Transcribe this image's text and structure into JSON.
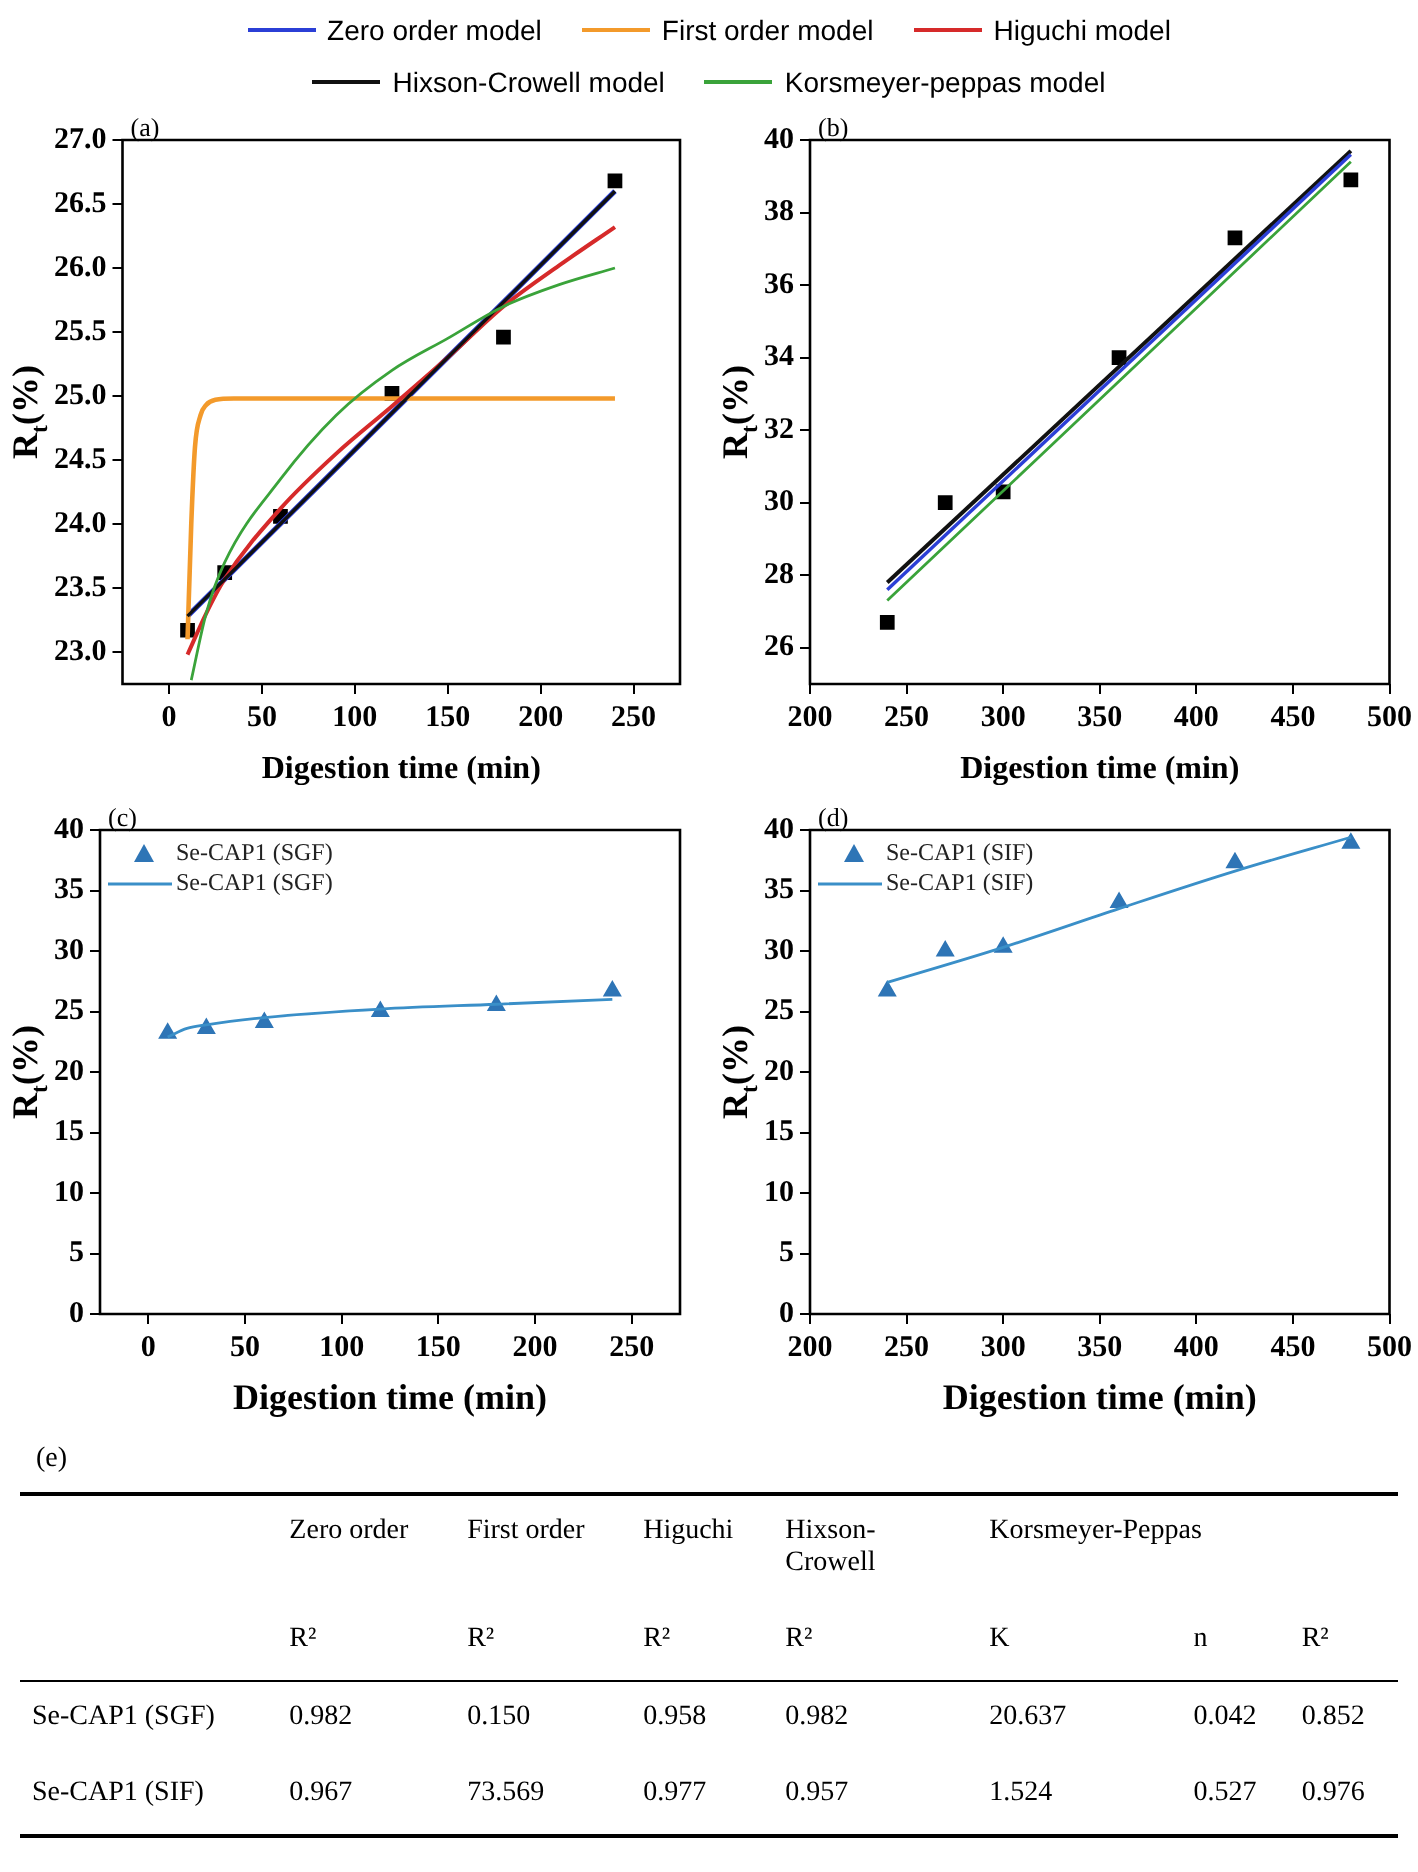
{
  "chart_data": [
    {
      "type": "line",
      "annotations": [
        "(a)"
      ],
      "xlabel": "Digestion time (min)",
      "ylabel": "R$_{t}$(%)",
      "legend": "top",
      "xlim": [
        -25,
        275
      ],
      "xticks": [
        0,
        50,
        100,
        150,
        200,
        250
      ],
      "ylim": [
        22.75,
        27.0
      ],
      "yticks": [
        {
          "value": 23,
          "label": "23.0"
        },
        23.5,
        {
          "value": 24,
          "label": "24.0"
        },
        24.5,
        {
          "value": 25,
          "label": "25.0"
        },
        25.5,
        {
          "value": 26,
          "label": "26.0"
        },
        26.5,
        {
          "value": 27,
          "label": "27.0"
        }
      ],
      "series": [
        {
          "type": "scatter",
          "marker": "square",
          "color": "#000000",
          "x": [
            10,
            30,
            60,
            120,
            180,
            240
          ],
          "values": [
            23.17,
            23.62,
            24.06,
            25.02,
            25.46,
            26.68
          ]
        },
        {
          "name": "Zero order model",
          "marker": "none",
          "color": "#2b3fd6",
          "x": [
            10,
            240
          ],
          "values": [
            23.28,
            26.6
          ]
        },
        {
          "name": "First order model",
          "marker": "none",
          "color": "#f39a2b",
          "x": [
            10,
            12,
            14,
            17,
            20,
            25,
            35,
            240
          ],
          "values": [
            23.1,
            24.0,
            24.6,
            24.85,
            24.93,
            24.97,
            24.98,
            24.98
          ]
        },
        {
          "name": "Higuchi model",
          "marker": "none",
          "color": "#d62a2a",
          "x": [
            10,
            20,
            30,
            60,
            90,
            120,
            150,
            180,
            210,
            240
          ],
          "values": [
            22.98,
            23.3,
            23.57,
            24.12,
            24.55,
            24.92,
            25.3,
            25.7,
            26.02,
            26.32
          ]
        },
        {
          "name": "Hixson-Crowell model",
          "marker": "none",
          "color": "#111111",
          "x": [
            10,
            240
          ],
          "values": [
            23.28,
            26.6
          ]
        },
        {
          "name": "Korsmeyer-peppas model",
          "marker": "none",
          "color": "#3aa33a",
          "x": [
            12,
            20,
            30,
            60,
            90,
            120,
            150,
            180,
            210,
            240
          ],
          "values": [
            22.78,
            23.3,
            23.7,
            24.35,
            24.85,
            25.2,
            25.45,
            25.7,
            25.87,
            26.0
          ]
        }
      ]
    },
    {
      "type": "line",
      "annotations": [
        "(b)"
      ],
      "xlabel": "Digestion time (min)",
      "ylabel": "R$_{t}$(%)",
      "xlim": [
        200,
        500
      ],
      "xticks": [
        200,
        250,
        300,
        350,
        400,
        450,
        500
      ],
      "ylim": [
        25,
        40
      ],
      "yticks": [
        26,
        28,
        30,
        32,
        34,
        36,
        38,
        40
      ],
      "series": [
        {
          "type": "scatter",
          "marker": "square",
          "color": "#000000",
          "x": [
            240,
            270,
            300,
            360,
            420,
            480
          ],
          "values": [
            26.7,
            30.0,
            30.3,
            34.0,
            37.3,
            38.9
          ]
        },
        {
          "marker": "none",
          "color": "#111111",
          "x": [
            240,
            480
          ],
          "values": [
            27.8,
            39.7
          ]
        },
        {
          "marker": "none",
          "color": "#2b3fd6",
          "x": [
            240,
            480
          ],
          "values": [
            27.6,
            39.6
          ]
        },
        {
          "marker": "none",
          "color": "#3aa33a",
          "x": [
            240,
            480
          ],
          "values": [
            27.3,
            39.4
          ]
        }
      ]
    },
    {
      "type": "line",
      "annotations": [
        "(c)"
      ],
      "xlabel": "Digestion time (min)",
      "ylabel": "R$_{t}$(%)",
      "legend": "top left",
      "xlim": [
        -25,
        275
      ],
      "xticks": [
        0,
        50,
        100,
        150,
        200,
        250
      ],
      "ylim": [
        0,
        40
      ],
      "yticks": [
        0,
        5,
        10,
        15,
        20,
        25,
        30,
        35,
        40
      ],
      "series": [
        {
          "type": "scatter",
          "marker": "triangle",
          "name": "Se-CAP1 (SGF)",
          "color": "#2e75b6",
          "x": [
            10,
            30,
            60,
            120,
            180,
            240
          ],
          "values": [
            23.2,
            23.6,
            24.1,
            25.0,
            25.5,
            26.7
          ]
        },
        {
          "name": "Se-CAP1 (SGF)",
          "marker": "none",
          "color": "#3a8fc8",
          "x": [
            10,
            20,
            30,
            60,
            120,
            180,
            240
          ],
          "values": [
            22.9,
            23.6,
            23.9,
            24.5,
            25.2,
            25.6,
            26.0
          ]
        }
      ]
    },
    {
      "type": "line",
      "annotations": [
        "(d)"
      ],
      "xlabel": "Digestion time (min)",
      "ylabel": "R$_{t}$(%)",
      "legend": "top left",
      "xlim": [
        200,
        500
      ],
      "xticks": [
        200,
        250,
        300,
        350,
        400,
        450,
        500
      ],
      "ylim": [
        0,
        40
      ],
      "yticks": [
        0,
        5,
        10,
        15,
        20,
        25,
        30,
        35,
        40
      ],
      "series": [
        {
          "type": "scatter",
          "marker": "triangle",
          "name": "Se-CAP1 (SIF)",
          "color": "#2e75b6",
          "x": [
            240,
            270,
            300,
            360,
            420,
            480
          ],
          "values": [
            26.7,
            30.0,
            30.3,
            34.0,
            37.3,
            38.9
          ]
        },
        {
          "name": "Se-CAP1 (SIF)",
          "marker": "none",
          "color": "#3a8fc8",
          "x": [
            240,
            300,
            360,
            420,
            480
          ],
          "values": [
            27.4,
            30.3,
            33.5,
            36.6,
            39.4
          ]
        }
      ]
    },
    {
      "type": "other",
      "title": "(e)",
      "categories": [
        null,
        "Zero order",
        "First order",
        "Higuchi",
        "Hixson-Crowell",
        "Korsmeyer-Peppas",
        null,
        null
      ],
      "annotations": [
        null,
        "R²",
        "R²",
        "R²",
        "R²",
        "K",
        "n",
        "R²",
        "Se-CAP1 (SGF)",
        "0.982",
        "0.150",
        "0.958",
        "0.982",
        "20.637",
        "0.042",
        "0.852",
        "Se-CAP1 (SIF)",
        "0.967",
        "73.569",
        "0.977",
        "0.957",
        "1.524",
        "0.527",
        "0.976"
      ]
    }
  ]
}
